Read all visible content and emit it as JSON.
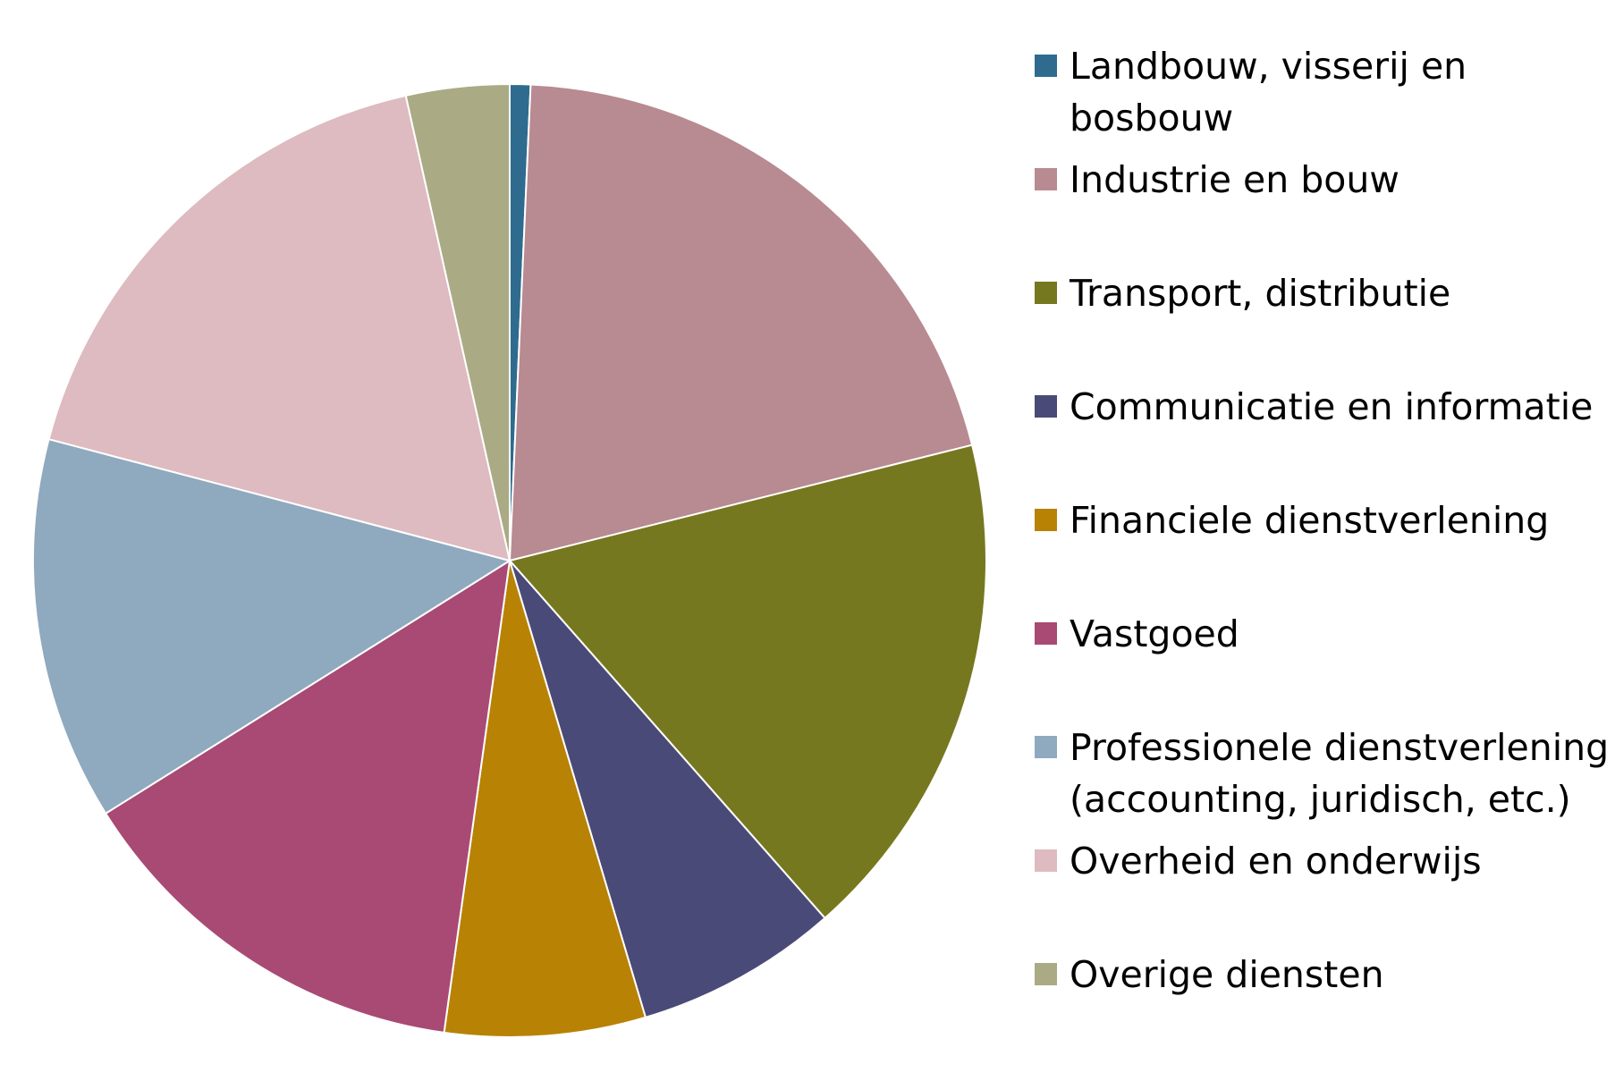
{
  "chart_data": {
    "type": "pie",
    "title": "",
    "legend_position": "right",
    "start": "top",
    "direction": "clockwise",
    "slices": [
      {
        "label_lines": [
          "Landbouw, visserij en",
          "bosbouw"
        ],
        "value": 0.7,
        "color": "#2E6B8F"
      },
      {
        "label_lines": [
          "Industrie en bouw"
        ],
        "value": 20.4,
        "color": "#B88A91"
      },
      {
        "label_lines": [
          "Transport, distributie"
        ],
        "value": 17.4,
        "color": "#76781F"
      },
      {
        "label_lines": [
          "Communicatie en informatie"
        ],
        "value": 6.9,
        "color": "#4A4A78"
      },
      {
        "label_lines": [
          "Financiele dienstverlening"
        ],
        "value": 6.8,
        "color": "#B88205"
      },
      {
        "label_lines": [
          "Vastgoed"
        ],
        "value": 13.9,
        "color": "#A84A74"
      },
      {
        "label_lines": [
          "Professionele dienstverlening",
          "(accounting, juridisch, etc.)"
        ],
        "value": 13.0,
        "color": "#8FA9BF"
      },
      {
        "label_lines": [
          "Overheid en onderwijs"
        ],
        "value": 17.4,
        "color": "#DDBBC0"
      },
      {
        "label_lines": [
          "Overige diensten"
        ],
        "value": 3.5,
        "color": "#AAAB85"
      }
    ]
  }
}
